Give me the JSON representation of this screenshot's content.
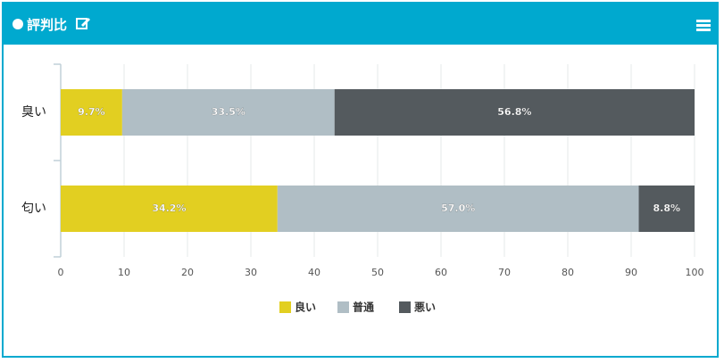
{
  "header": {
    "title": "評判比"
  },
  "chart_data": {
    "type": "stacked-bar-horizontal",
    "categories": [
      "臭い",
      "匂い"
    ],
    "series": [
      {
        "name": "良い",
        "color": "#e2cf21",
        "values": [
          9.7,
          34.2
        ],
        "value_labels": [
          "9.7%",
          "34.2%"
        ]
      },
      {
        "name": "普通",
        "color": "#b0bec5",
        "values": [
          33.5,
          57.0
        ],
        "value_labels": [
          "33.5%",
          "57.0%"
        ]
      },
      {
        "name": "悪い",
        "color": "#545a5e",
        "values": [
          56.8,
          8.8
        ],
        "value_labels": [
          "56.8%",
          "8.8%"
        ]
      }
    ],
    "xlim": [
      0,
      100
    ],
    "xticks": [
      0,
      10,
      20,
      30,
      40,
      50,
      60,
      70,
      80,
      90,
      100
    ],
    "grid": true
  }
}
